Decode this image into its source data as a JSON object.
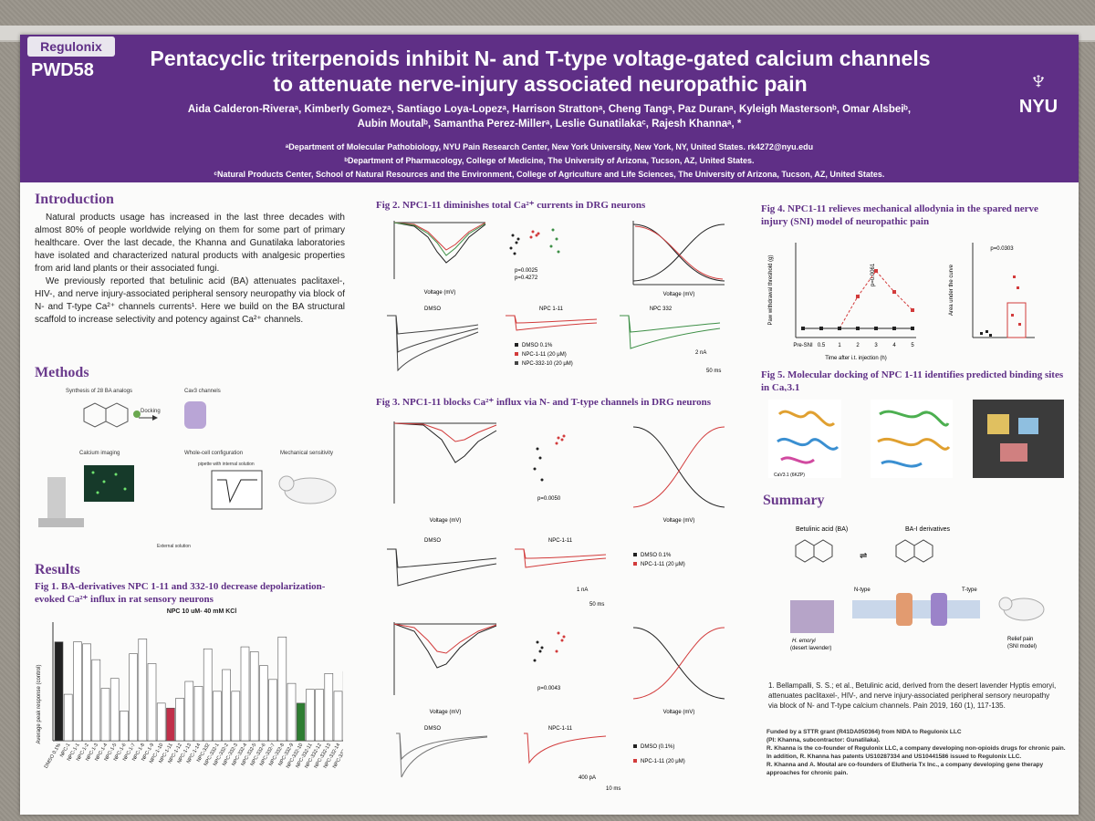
{
  "header": {
    "logo": "Regulonix",
    "code": "PWD58",
    "title_line1": "Pentacyclic triterpenoids inhibit N- and T-type voltage-gated calcium channels",
    "title_line2": "to attenuate nerve-injury associated neuropathic pain",
    "authors_line1": "Aida Calderon-Riveraᵃ, Kimberly Gomezᵃ, Santiago Loya-Lopezᵃ, Harrison Strattonᵃ, Cheng Tangᵃ, Paz Duranᵃ, Kyleigh Mastersonᵇ, Omar Alsbeiᵇ,",
    "authors_line2": "Aubin Moutalᵇ, Samantha Perez-Millerᵃ, Leslie Gunatilakaᶜ, Rajesh Khannaᵃ, *",
    "affil_a": "ᵃDepartment of Molecular Pathobiology, NYU Pain Research Center, New York University, New York, NY, United States.  rk4272@nyu.edu",
    "affil_b": "ᵇDepartment of Pharmacology, College of Medicine, The University of Arizona, Tucson, AZ, United States.",
    "affil_c": "ᶜNatural Products Center, School of Natural Resources and the Environment, College of Agriculture and Life Sciences, The University of Arizona, Tucson, AZ, United States.",
    "nyu": "NYU"
  },
  "intro": {
    "heading": "Introduction",
    "p1": "Natural products usage has increased in the last three decades with almost 80% of people worldwide relying on them for some part of primary healthcare. Over the last decade, the Khanna and Gunatilaka laboratories have isolated and characterized natural products with analgesic properties from arid land plants or their associated fungi.",
    "p2": "We previously reported that betulinic acid (BA) attenuates paclitaxel-, HIV-, and nerve injury-associated peripheral sensory neuropathy via block of N- and T-type Ca²⁺ channels currents¹. Here we build on the BA structural scaffold to increase selectivity and potency against Ca²⁺ channels."
  },
  "methods": {
    "heading": "Methods",
    "step1": "Synthesis of 28 BA analogs",
    "step2": "Docking",
    "step3": "Cav3 channels",
    "step4": "Calcium imaging",
    "step5": "Whole-cell configuration",
    "step6": "Mechanical sensitivity",
    "step7": "External solution",
    "step8": "pipette with internal solution"
  },
  "results": {
    "heading": "Results",
    "fig1_title": "Fig 1. BA-derivatives NPC 1-11 and 332-10 decrease depolarization-evoked Ca²⁺ influx in rat sensory neurons",
    "fig1_sub": "NPC 10 uM- 40 mM KCl",
    "fig1_ylabel": "Average peak response (control)"
  },
  "fig2": {
    "title": "Fig 2. NPC1-11 diminishes total Ca²⁺ currents in DRG neurons",
    "p1": "p=0.0025",
    "p2": "p=0.4272",
    "xlabel": "Voltage (mV)",
    "trace1": "DMSO",
    "trace2": "NPC 1-11",
    "trace3": "NPC 332",
    "leg1": "DMSO 0.1%",
    "leg2": "NPC-1-11 (20 μM)",
    "leg3": "NPC-332-10 (20 μM)",
    "scale_y": "2 nA",
    "scale_x": "50 ms"
  },
  "fig3": {
    "title": "Fig 3. NPC1-11 blocks Ca²⁺ influx via N- and T-type channels in DRG neurons",
    "p1": "p=0.0050",
    "p2": "p=0.0043",
    "xlabel": "Voltage (mV)",
    "trace1": "DMSO",
    "trace2": "NPC-1-11",
    "leg1": "DMSO 0.1%",
    "leg2": "NPC-1-11 (20 μM)",
    "leg3": "DMSO (0.1%)",
    "scale1_y": "1 nA",
    "scale1_x": "50 ms",
    "scale2_y": "400 pA",
    "scale2_x": "10 ms"
  },
  "fig4": {
    "title": "Fig 4. NPC1-11 relieves mechanical allodynia in the spared nerve injury (SNI) model of neuropathic pain",
    "p1": "p=0.0061",
    "p2": "p=0.0303",
    "ylabel1": "Paw withdrawal threshold (g)",
    "xlabel1": "Time after i.t. injection (h)",
    "ylabel2": "Area under the curve"
  },
  "fig5": {
    "title": "Fig 5. Molecular docking of NPC 1-11 identifies predicted binding sites in Caᵥ3.1",
    "label1": "CaV3.1 (6KZP)"
  },
  "summary": {
    "heading": "Summary",
    "ba": "Betulinic acid (BA)",
    "bai": "BA-I derivatives",
    "ntype": "N-type",
    "ttype": "T-type",
    "plant": "H. emoryi",
    "plant2": "(desert lavender)",
    "relief": "Relief pain",
    "relief2": "(SNI model)"
  },
  "reference": "1. Bellampalli, S. S.; et al., Betulinic acid, derived from the desert lavender Hyptis emoryi, attenuates paclitaxel-, HIV-, and nerve injury-associated peripheral sensory neuropathy via block of N- and T-type calcium channels. Pain 2019, 160 (1), 117-135.",
  "funding": {
    "l1": "Funded by a STTR grant (R41DA050364) from NIDA to Regulonix LLC",
    "l2": "(PI: Khanna, subcontractor: Gunatilaka).",
    "l3": "R. Khanna is the co-founder of Regulonix LLC, a company developing non-opioids drugs for chronic pain.",
    "l4": "In addition, R. Khanna has patents US10287334 and US10441586 issued to Regulonix LLC.",
    "l5": "R. Khanna and A. Moutal are co-founders of Elutheria Tx Inc., a company developing gene therapy",
    "l6": "approaches for chronic pain."
  },
  "chart_data": [
    {
      "type": "bar",
      "title": "NPC 10 uM- 40 mM KCl",
      "ylabel": "Average peak response (control)",
      "ylim": [
        0,
        1.2
      ],
      "categories": [
        "DMSO 0.1%",
        "NPC-1",
        "NPC-1-1",
        "NPC-1-2",
        "NPC-1-3",
        "NPC-1-4",
        "NPC-1-5",
        "NPC-1-6",
        "NPC-1-7",
        "NPC-1-8",
        "NPC-1-9",
        "NPC-1-10",
        "NPC-1-11",
        "NPC-1-12",
        "NPC-1-13",
        "NPC-1-14",
        "NPC-332",
        "NPC-332-1",
        "NPC-332-2",
        "NPC-332-3",
        "NPC-332-4",
        "NPC-332-5",
        "NPC-332-6",
        "NPC-332-7",
        "NPC-332-8",
        "NPC-332-9",
        "NPC-332-10",
        "NPC-332-11",
        "NPC-332-12",
        "NPC-332-13",
        "NPC-332-14",
        "NPC-332-15"
      ],
      "values": [
        1.0,
        0.47,
        1.0,
        0.98,
        0.82,
        0.53,
        0.63,
        0.3,
        0.88,
        1.03,
        0.78,
        0.38,
        0.33,
        0.43,
        0.6,
        0.55,
        0.93,
        0.5,
        0.72,
        0.5,
        0.95,
        0.9,
        0.76,
        0.62,
        1.05,
        0.58,
        0.38,
        0.52,
        0.52,
        0.68,
        0.5,
        0.7
      ]
    },
    {
      "type": "line",
      "ylabel": "Paw withdrawal threshold (g)",
      "xlabel": "Time after i.t. injection (h)",
      "categories": [
        "Pre-SNI",
        "0.5",
        "1",
        "2",
        "3",
        "4",
        "5"
      ],
      "series": [
        {
          "values": [
            1.0,
            1.0,
            1.0,
            4.5,
            7.3,
            5.0,
            3.0
          ]
        },
        {
          "values": [
            1.0,
            1.0,
            1.0,
            1.0,
            1.0,
            1.0,
            1.0
          ]
        }
      ]
    }
  ]
}
